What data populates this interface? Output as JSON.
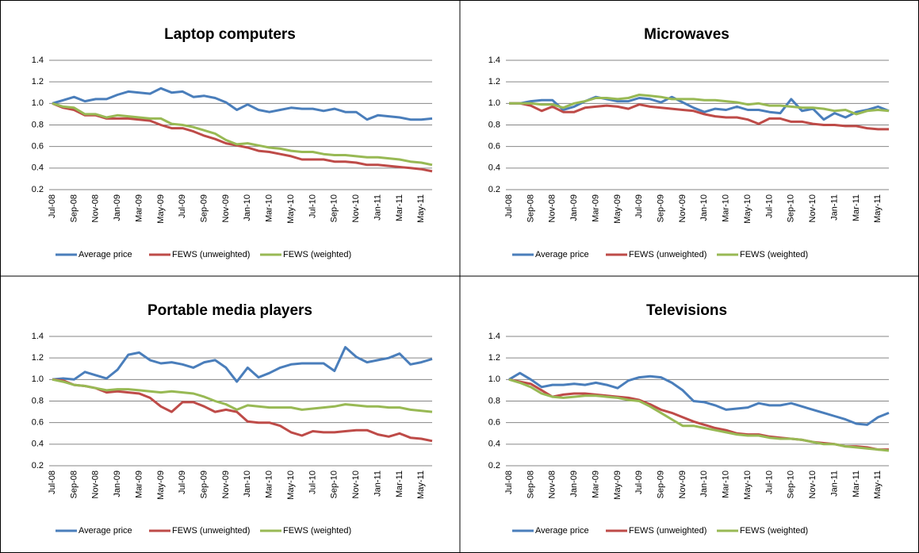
{
  "chart_data": [
    {
      "type": "line",
      "title": "Laptop computers",
      "categories": [
        "Jul-08",
        null,
        "Sep-08",
        null,
        "Nov-08",
        null,
        "Jan-09",
        null,
        "Mar-09",
        null,
        "May-09",
        null,
        "Jul-09",
        null,
        "Sep-09",
        null,
        "Nov-09",
        null,
        "Jan-10",
        null,
        "Mar-10",
        null,
        "May-10",
        null,
        "Jul-10",
        null,
        "Sep-10",
        null,
        "Nov-10",
        null,
        "Jan-11",
        null,
        "Mar-11",
        null,
        "May-11",
        null
      ],
      "ylim": [
        0.2,
        1.4
      ],
      "yticks": [
        0.2,
        0.4,
        0.6,
        0.8,
        {
          "value": 1,
          "label": "1.0"
        },
        1.2,
        1.4
      ],
      "grid": true,
      "legend": "bottom",
      "series": [
        {
          "name": "Average price",
          "color": "#4a7ebb",
          "values": [
            1.0,
            1.03,
            1.06,
            1.02,
            1.04,
            1.04,
            1.08,
            1.11,
            1.1,
            1.09,
            1.14,
            1.1,
            1.11,
            1.06,
            1.07,
            1.05,
            1.01,
            0.94,
            0.99,
            0.94,
            0.92,
            0.94,
            0.96,
            0.95,
            0.95,
            0.93,
            0.95,
            0.92,
            0.92,
            0.85,
            0.89,
            0.88,
            0.87,
            0.85,
            0.85,
            0.86
          ]
        },
        {
          "name": "FEWS (unweighted)",
          "color": "#be4b48",
          "values": [
            1.0,
            0.96,
            0.94,
            0.89,
            0.89,
            0.86,
            0.86,
            0.86,
            0.85,
            0.84,
            0.8,
            0.77,
            0.77,
            0.74,
            0.7,
            0.67,
            0.63,
            0.61,
            0.59,
            0.56,
            0.55,
            0.53,
            0.51,
            0.48,
            0.48,
            0.48,
            0.46,
            0.46,
            0.45,
            0.43,
            0.43,
            0.42,
            0.41,
            0.4,
            0.39,
            0.37
          ]
        },
        {
          "name": "FEWS (weighted)",
          "color": "#98b954",
          "values": [
            1.0,
            0.97,
            0.96,
            0.9,
            0.9,
            0.87,
            0.89,
            0.88,
            0.87,
            0.86,
            0.86,
            0.81,
            0.8,
            0.78,
            0.75,
            0.72,
            0.66,
            0.62,
            0.63,
            0.61,
            0.59,
            0.58,
            0.56,
            0.55,
            0.55,
            0.53,
            0.52,
            0.52,
            0.51,
            0.5,
            0.5,
            0.49,
            0.48,
            0.46,
            0.45,
            0.43
          ]
        }
      ]
    },
    {
      "type": "line",
      "title": "Microwaves",
      "categories": [
        "Jul-08",
        null,
        "Sep-08",
        null,
        "Nov-08",
        null,
        "Jan-09",
        null,
        "Mar-09",
        null,
        "May-09",
        null,
        "Jul-09",
        null,
        "Sep-09",
        null,
        "Nov-09",
        null,
        "Jan-10",
        null,
        "Mar-10",
        null,
        "May-10",
        null,
        "Jul-10",
        null,
        "Sep-10",
        null,
        "Nov-10",
        null,
        "Jan-11",
        null,
        "Mar-11",
        null,
        "May-11",
        null
      ],
      "ylim": [
        0.2,
        1.4
      ],
      "yticks": [
        0.2,
        0.4,
        0.6,
        0.8,
        {
          "value": 1,
          "label": "1.0"
        },
        1.2,
        1.4
      ],
      "grid": true,
      "legend": "bottom",
      "series": [
        {
          "name": "Average price",
          "color": "#4a7ebb",
          "values": [
            1.0,
            1.0,
            1.02,
            1.03,
            1.03,
            0.94,
            0.97,
            1.02,
            1.06,
            1.04,
            1.02,
            1.02,
            1.05,
            1.04,
            1.01,
            1.06,
            1.01,
            0.96,
            0.92,
            0.95,
            0.94,
            0.97,
            0.94,
            0.94,
            0.92,
            0.91,
            1.04,
            0.93,
            0.95,
            0.85,
            0.91,
            0.87,
            0.92,
            0.94,
            0.97,
            0.93
          ]
        },
        {
          "name": "FEWS (unweighted)",
          "color": "#be4b48",
          "values": [
            1.0,
            1.0,
            0.98,
            0.93,
            0.97,
            0.92,
            0.92,
            0.96,
            0.97,
            0.98,
            0.97,
            0.95,
            0.99,
            0.97,
            0.96,
            0.95,
            0.94,
            0.93,
            0.9,
            0.88,
            0.87,
            0.87,
            0.85,
            0.81,
            0.86,
            0.86,
            0.83,
            0.83,
            0.81,
            0.8,
            0.8,
            0.79,
            0.79,
            0.77,
            0.76,
            0.76
          ]
        },
        {
          "name": "FEWS (weighted)",
          "color": "#98b954",
          "values": [
            1.0,
            1.0,
            1.0,
            0.99,
            0.99,
            0.96,
            1.0,
            1.02,
            1.05,
            1.05,
            1.04,
            1.05,
            1.08,
            1.07,
            1.06,
            1.04,
            1.04,
            1.04,
            1.03,
            1.03,
            1.02,
            1.01,
            0.99,
            1.0,
            0.98,
            0.98,
            0.97,
            0.96,
            0.96,
            0.95,
            0.93,
            0.94,
            0.9,
            0.93,
            0.94,
            0.93
          ]
        }
      ]
    },
    {
      "type": "line",
      "title": "Portable media players",
      "categories": [
        "Jul-08",
        null,
        "Sep-08",
        null,
        "Nov-08",
        null,
        "Jan-09",
        null,
        "Mar-09",
        null,
        "May-09",
        null,
        "Jul-09",
        null,
        "Sep-09",
        null,
        "Nov-09",
        null,
        "Jan-10",
        null,
        "Mar-10",
        null,
        "May-10",
        null,
        "Jul-10",
        null,
        "Sep-10",
        null,
        "Nov-10",
        null,
        "Jan-11",
        null,
        "Mar-11",
        null,
        "May-11",
        null
      ],
      "ylim": [
        0.2,
        1.4
      ],
      "yticks": [
        0.2,
        0.4,
        0.6,
        0.8,
        {
          "value": 1,
          "label": "1.0"
        },
        1.2,
        1.4
      ],
      "grid": true,
      "legend": "bottom",
      "series": [
        {
          "name": "Average price",
          "color": "#4a7ebb",
          "values": [
            1.0,
            1.01,
            1.0,
            1.07,
            1.04,
            1.01,
            1.09,
            1.23,
            1.25,
            1.18,
            1.15,
            1.16,
            1.14,
            1.11,
            1.16,
            1.18,
            1.11,
            0.98,
            1.11,
            1.02,
            1.06,
            1.11,
            1.14,
            1.15,
            1.15,
            1.15,
            1.08,
            1.3,
            1.21,
            1.16,
            1.18,
            1.2,
            1.24,
            1.14,
            1.16,
            1.19
          ]
        },
        {
          "name": "FEWS (unweighted)",
          "color": "#be4b48",
          "values": [
            1.0,
            0.99,
            0.95,
            0.94,
            0.92,
            0.88,
            0.89,
            0.88,
            0.87,
            0.83,
            0.75,
            0.7,
            0.79,
            0.79,
            0.75,
            0.7,
            0.72,
            0.7,
            0.61,
            0.6,
            0.6,
            0.57,
            0.51,
            0.48,
            0.52,
            0.51,
            0.51,
            0.52,
            0.53,
            0.53,
            0.49,
            0.47,
            0.5,
            0.46,
            0.45,
            0.43
          ]
        },
        {
          "name": "FEWS (weighted)",
          "color": "#98b954",
          "values": [
            1.0,
            0.98,
            0.95,
            0.94,
            0.92,
            0.9,
            0.91,
            0.91,
            0.9,
            0.89,
            0.88,
            0.89,
            0.88,
            0.87,
            0.84,
            0.8,
            0.77,
            0.72,
            0.76,
            0.75,
            0.74,
            0.74,
            0.74,
            0.72,
            0.73,
            0.74,
            0.75,
            0.77,
            0.76,
            0.75,
            0.75,
            0.74,
            0.74,
            0.72,
            0.71,
            0.7
          ]
        }
      ]
    },
    {
      "type": "line",
      "title": "Televisions",
      "categories": [
        "Jul-08",
        null,
        "Sep-08",
        null,
        "Nov-08",
        null,
        "Jan-09",
        null,
        "Mar-09",
        null,
        "May-09",
        null,
        "Jul-09",
        null,
        "Sep-09",
        null,
        "Nov-09",
        null,
        "Jan-10",
        null,
        "Mar-10",
        null,
        "May-10",
        null,
        "Jul-10",
        null,
        "Sep-10",
        null,
        "Nov-10",
        null,
        "Jan-11",
        null,
        "Mar-11",
        null,
        "May-11",
        null
      ],
      "ylim": [
        0.2,
        1.4
      ],
      "yticks": [
        0.2,
        0.4,
        0.6,
        0.8,
        {
          "value": 1,
          "label": "1.0"
        },
        1.2,
        1.4
      ],
      "grid": true,
      "legend": "bottom",
      "series": [
        {
          "name": "Average price",
          "color": "#4a7ebb",
          "values": [
            1.0,
            1.06,
            1.0,
            0.93,
            0.95,
            0.95,
            0.96,
            0.95,
            0.97,
            0.95,
            0.92,
            0.99,
            1.02,
            1.03,
            1.02,
            0.97,
            0.9,
            0.8,
            0.79,
            0.76,
            0.72,
            0.73,
            0.74,
            0.78,
            0.76,
            0.76,
            0.78,
            0.75,
            0.72,
            0.69,
            0.66,
            0.63,
            0.59,
            0.58,
            0.65,
            0.69
          ]
        },
        {
          "name": "FEWS (unweighted)",
          "color": "#be4b48",
          "values": [
            1.0,
            0.98,
            0.96,
            0.9,
            0.84,
            0.86,
            0.87,
            0.87,
            0.86,
            0.85,
            0.84,
            0.83,
            0.81,
            0.77,
            0.72,
            0.69,
            0.65,
            0.61,
            0.58,
            0.55,
            0.53,
            0.5,
            0.49,
            0.49,
            0.47,
            0.46,
            0.45,
            0.44,
            0.42,
            0.41,
            0.4,
            0.38,
            0.38,
            0.37,
            0.35,
            0.35
          ]
        },
        {
          "name": "FEWS (weighted)",
          "color": "#98b954",
          "values": [
            1.0,
            0.97,
            0.93,
            0.87,
            0.84,
            0.83,
            0.84,
            0.85,
            0.85,
            0.84,
            0.83,
            0.81,
            0.8,
            0.75,
            0.69,
            0.63,
            0.57,
            0.57,
            0.55,
            0.53,
            0.51,
            0.49,
            0.48,
            0.48,
            0.46,
            0.45,
            0.45,
            0.44,
            0.42,
            0.4,
            0.4,
            0.38,
            0.37,
            0.36,
            0.35,
            0.34
          ]
        }
      ]
    }
  ]
}
